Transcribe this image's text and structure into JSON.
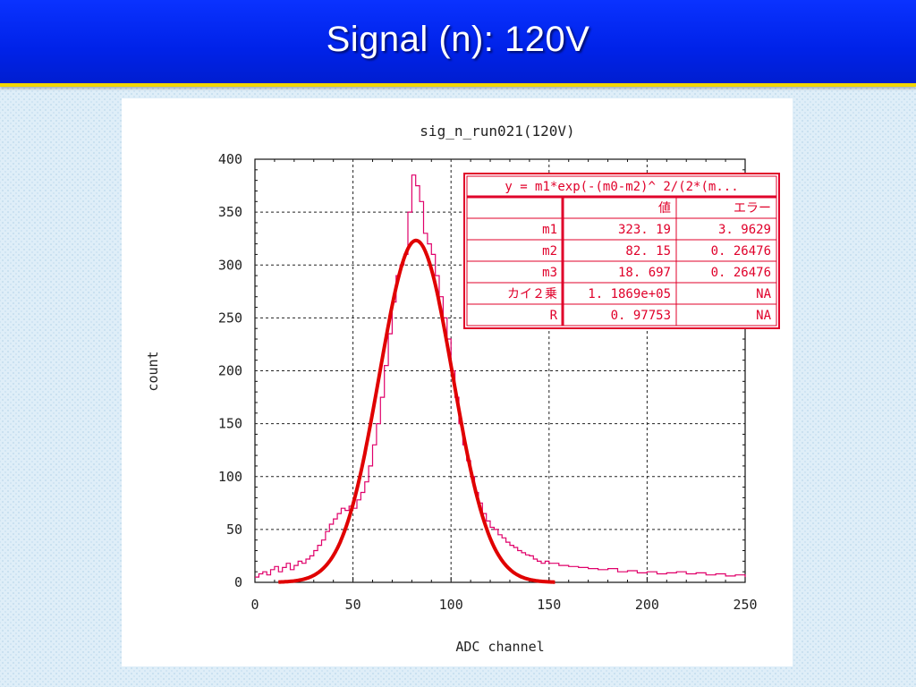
{
  "slide": {
    "title": "Signal (n):  120V"
  },
  "chart_data": {
    "type": "line",
    "title": "sig_n_run021(120V)",
    "xlabel": "ADC channel",
    "ylabel": "count",
    "xlim": [
      0,
      250
    ],
    "ylim": [
      0,
      400
    ],
    "xticks": [
      0,
      50,
      100,
      150,
      200,
      250
    ],
    "yticks": [
      0,
      50,
      100,
      150,
      200,
      250,
      300,
      350,
      400
    ],
    "grid": true,
    "series": [
      {
        "style": "histogram-step",
        "color": "#e0006a",
        "x": [
          0,
          2,
          4,
          6,
          8,
          10,
          12,
          14,
          16,
          18,
          20,
          22,
          24,
          26,
          28,
          30,
          32,
          34,
          36,
          38,
          40,
          42,
          44,
          46,
          48,
          50,
          52,
          54,
          56,
          58,
          60,
          62,
          64,
          66,
          68,
          70,
          72,
          74,
          76,
          78,
          80,
          82,
          84,
          86,
          88,
          90,
          92,
          94,
          96,
          98,
          100,
          102,
          104,
          106,
          108,
          110,
          112,
          114,
          116,
          118,
          120,
          122,
          124,
          126,
          128,
          130,
          132,
          134,
          136,
          138,
          140,
          142,
          144,
          146,
          148,
          150,
          155,
          160,
          165,
          170,
          175,
          180,
          185,
          190,
          195,
          200,
          205,
          210,
          215,
          220,
          225,
          230,
          235,
          240,
          245,
          250
        ],
        "y": [
          5,
          8,
          10,
          7,
          12,
          15,
          10,
          14,
          18,
          12,
          16,
          20,
          18,
          22,
          25,
          30,
          35,
          40,
          48,
          55,
          60,
          65,
          70,
          68,
          72,
          70,
          78,
          85,
          95,
          110,
          130,
          150,
          175,
          205,
          235,
          265,
          290,
          300,
          310,
          350,
          385,
          375,
          360,
          330,
          320,
          310,
          290,
          270,
          250,
          230,
          200,
          175,
          150,
          130,
          115,
          100,
          85,
          75,
          65,
          58,
          52,
          50,
          45,
          42,
          38,
          35,
          33,
          30,
          28,
          26,
          25,
          22,
          20,
          18,
          20,
          18,
          16,
          15,
          14,
          13,
          12,
          13,
          10,
          11,
          9,
          10,
          8,
          9,
          10,
          8,
          9,
          7,
          8,
          6,
          7,
          5
        ]
      },
      {
        "style": "fit-curve",
        "color": "#e00000",
        "name": "y = m1*exp(-(m0-m2)^2/(2*(m...",
        "params": {
          "m1": 323.19,
          "m2": 82.15,
          "m3": 18.697
        },
        "x_range": [
          12,
          153
        ]
      }
    ],
    "fit_box": {
      "header": "y = m1*exp(-(m0-m2)^ 2/(2*(m...",
      "col_value": "値",
      "col_error": "エラー",
      "rows": [
        {
          "name": "m1",
          "value": "323. 19",
          "error": "3. 9629"
        },
        {
          "name": "m2",
          "value": "82. 15",
          "error": "0. 26476"
        },
        {
          "name": "m3",
          "value": "18. 697",
          "error": "0. 26476"
        },
        {
          "name": "カイ２乗",
          "value": "1. 1869e+05",
          "error": "NA"
        },
        {
          "name": "R",
          "value": "0. 97753",
          "error": "NA"
        }
      ]
    }
  }
}
